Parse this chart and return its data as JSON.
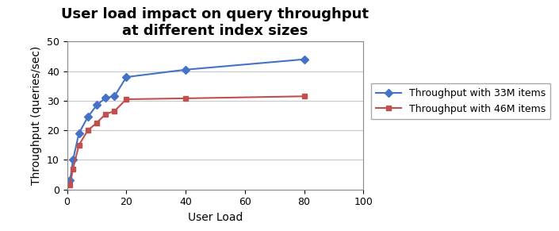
{
  "title": "User load impact on query throughput\nat different index sizes",
  "xlabel": "User Load",
  "ylabel": "Throughput (queries/sec)",
  "xlim": [
    0,
    100
  ],
  "ylim": [
    0,
    50
  ],
  "xticks": [
    0,
    20,
    40,
    60,
    80,
    100
  ],
  "yticks": [
    0,
    10,
    20,
    30,
    40,
    50
  ],
  "series": [
    {
      "label": "Throughput with 33M items",
      "x": [
        1,
        2,
        4,
        7,
        10,
        13,
        16,
        20,
        40,
        80
      ],
      "y": [
        3.0,
        10.0,
        19.0,
        24.5,
        28.5,
        31.0,
        31.5,
        38.0,
        40.5,
        44.0
      ],
      "color": "#4472C4",
      "marker": "D",
      "marker_color": "#4472C4",
      "linewidth": 1.5,
      "markersize": 5
    },
    {
      "label": "Throughput with 46M items",
      "x": [
        1,
        2,
        4,
        7,
        10,
        13,
        16,
        20,
        40,
        80
      ],
      "y": [
        1.5,
        7.0,
        15.0,
        20.0,
        22.5,
        25.5,
        26.5,
        30.5,
        30.8,
        31.5
      ],
      "color": "#C0504D",
      "marker": "s",
      "marker_color": "#C0504D",
      "linewidth": 1.5,
      "markersize": 5
    }
  ],
  "plot_bg": "#FFFFFF",
  "fig_bg": "#FFFFFF",
  "grid_color": "#C8C8C8",
  "title_fontsize": 13,
  "axis_label_fontsize": 10,
  "tick_fontsize": 9,
  "legend_fontsize": 9,
  "legend_bg": "#FFFFFF",
  "legend_edge": "#AAAAAA"
}
